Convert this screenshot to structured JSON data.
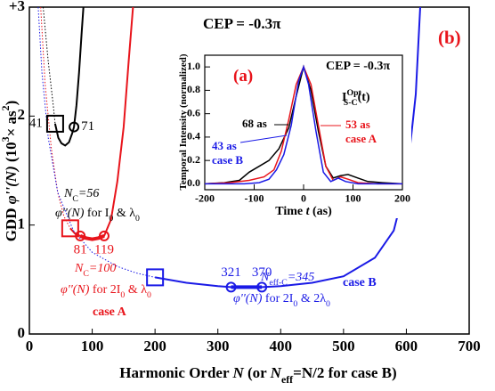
{
  "chart_data": [
    {
      "type": "line",
      "xlim": [
        0,
        700
      ],
      "xticks": [
        0,
        100,
        200,
        300,
        400,
        500,
        600,
        700
      ],
      "ylim": [
        0,
        3
      ],
      "yticks": [
        0,
        1,
        2,
        {
          "value": 3,
          "label": "+3"
        }
      ],
      "xlabel": [
        "Harmonic Order   ",
        "N",
        "   (or  ",
        "N",
        "eff",
        "=N/2  for case B)"
      ],
      "ylabel": [
        "GDD   ",
        "φ''(N)",
        "   (10",
        "3",
        "× as",
        "2",
        ")"
      ],
      "series": [
        {
          "color": "#000000",
          "dotted": true,
          "width": 1,
          "x": [
            22,
            26,
            30,
            34,
            38,
            41
          ],
          "values": [
            3,
            2.75,
            2.5,
            2.3,
            2.1,
            1.93
          ]
        },
        {
          "color": "#000000",
          "dotted": false,
          "width": 2,
          "x": [
            41,
            46,
            51,
            57,
            63,
            68,
            71,
            75,
            79,
            83,
            86
          ],
          "values": [
            1.93,
            1.8,
            1.75,
            1.73,
            1.76,
            1.84,
            1.9,
            2.1,
            2.4,
            2.75,
            3
          ]
        },
        {
          "color": "#e8141b",
          "dotted": true,
          "width": 1,
          "x": [
            18,
            25,
            35,
            45,
            55,
            65
          ],
          "values": [
            3,
            2.3,
            1.7,
            1.3,
            1.08,
            0.97
          ]
        },
        {
          "color": "#e8141b",
          "dotted": false,
          "width": 2,
          "x": [
            65,
            73,
            81,
            90,
            100,
            110,
            119,
            130,
            140,
            150,
            158,
            165
          ],
          "values": [
            0.97,
            0.92,
            0.9,
            0.88,
            0.87,
            0.88,
            0.9,
            1.05,
            1.4,
            1.9,
            2.5,
            3
          ]
        },
        {
          "color": "#e8141b",
          "dotted": false,
          "width": 4,
          "x": [
            81,
            90,
            100,
            110,
            119
          ],
          "values": [
            0.9,
            0.88,
            0.87,
            0.88,
            0.9
          ]
        },
        {
          "color": "#1a1ae6",
          "dotted": true,
          "width": 1,
          "x": [
            14,
            20,
            30,
            45,
            70,
            100,
            140,
            170,
            200
          ],
          "values": [
            3,
            2.4,
            1.8,
            1.3,
            0.95,
            0.75,
            0.62,
            0.56,
            0.52
          ]
        },
        {
          "color": "#1a1ae6",
          "dotted": false,
          "width": 2,
          "x": [
            200,
            250,
            300,
            321,
            345,
            370,
            400,
            450,
            500,
            550,
            580,
            600,
            615,
            622
          ],
          "values": [
            0.52,
            0.47,
            0.44,
            0.43,
            0.43,
            0.43,
            0.44,
            0.47,
            0.53,
            0.7,
            0.95,
            1.4,
            2.2,
            3
          ]
        },
        {
          "color": "#1a1ae6",
          "dotted": false,
          "width": 4,
          "x": [
            321,
            345,
            370
          ],
          "values": [
            0.43,
            0.43,
            0.43
          ]
        }
      ],
      "markers": [
        {
          "shape": "square",
          "color": "#000000",
          "x": 41,
          "y": 1.93,
          "label_side": "left"
        },
        {
          "shape": "circle",
          "color": "#000000",
          "x": 71,
          "y": 1.9,
          "label_side": "right"
        },
        {
          "shape": "square",
          "color": "#e8141b",
          "x": 65,
          "y": 0.97
        },
        {
          "shape": "circle",
          "color": "#e8141b",
          "x": 81,
          "y": 0.9,
          "label_side": "below"
        },
        {
          "shape": "circle",
          "color": "#e8141b",
          "x": 119,
          "y": 0.9,
          "label_side": "below"
        },
        {
          "shape": "square",
          "color": "#1a1ae6",
          "x": 200,
          "y": 0.52
        },
        {
          "shape": "circle",
          "color": "#1a1ae6",
          "x": 321,
          "y": 0.43,
          "label_side": "above"
        },
        {
          "shape": "circle",
          "color": "#1a1ae6",
          "x": 370,
          "y": 0.43,
          "label_side": "above"
        }
      ],
      "annotations": [
        [
          "CEP = -0.3π"
        ],
        [
          "(b)"
        ],
        [
          "N",
          "C",
          "=56"
        ],
        [
          "φ''(N)",
          " for I",
          "0",
          " & λ",
          "0"
        ],
        [
          "N",
          "C",
          "=100"
        ],
        [
          "φ''(N)",
          " for 2I",
          "0",
          " & λ",
          "0"
        ],
        [
          "case A"
        ],
        [
          "N",
          "eff-C",
          "=345"
        ],
        [
          "φ''(N)",
          " for 2I",
          "0",
          " & 2λ",
          "0"
        ],
        [
          "case B"
        ]
      ]
    },
    {
      "type": "line",
      "xlim": [
        -200,
        200
      ],
      "xticks": [
        -200,
        -100,
        0,
        100,
        200
      ],
      "ylim": [
        -0.05,
        1.1
      ],
      "yticks": [
        {
          "value": 0,
          "label": "0.0"
        },
        0.2,
        0.4,
        0.6,
        0.8,
        {
          "value": 1,
          "label": "1.0"
        }
      ],
      "xlabel": [
        "Time  ",
        "t",
        "   (as)"
      ],
      "ylabel": [
        "Temporal Intensity (normalized)"
      ],
      "series": [
        {
          "color": "#000000",
          "dotted": false,
          "width": 1.5,
          "x": [
            -200,
            -160,
            -130,
            -110,
            -90,
            -70,
            -50,
            -30,
            -15,
            0,
            15,
            30,
            45,
            60,
            75,
            90,
            110,
            130,
            160,
            200
          ],
          "values": [
            0,
            0.01,
            0.03,
            0.1,
            0.15,
            0.2,
            0.3,
            0.48,
            0.75,
            1,
            0.8,
            0.45,
            0.15,
            0.05,
            0.07,
            0.08,
            0.05,
            0.02,
            0.01,
            0
          ]
        },
        {
          "color": "#e8141b",
          "dotted": false,
          "width": 1.5,
          "x": [
            -200,
            -150,
            -110,
            -80,
            -60,
            -45,
            -30,
            -15,
            0,
            15,
            30,
            45,
            60,
            75,
            90,
            110,
            150,
            200
          ],
          "values": [
            0,
            0.01,
            0.03,
            0.06,
            0.12,
            0.28,
            0.55,
            0.85,
            1,
            0.85,
            0.5,
            0.15,
            0.03,
            0.06,
            0.04,
            0.01,
            0,
            0
          ]
        },
        {
          "color": "#1a1ae6",
          "dotted": false,
          "width": 1.5,
          "x": [
            -200,
            -120,
            -90,
            -70,
            -55,
            -40,
            -25,
            -10,
            0,
            10,
            25,
            40,
            55,
            70,
            85,
            110,
            200
          ],
          "values": [
            0,
            0,
            0.01,
            0.04,
            0.12,
            0.25,
            0.5,
            0.88,
            1,
            0.85,
            0.45,
            0.1,
            0.02,
            0.05,
            0.02,
            0,
            0
          ]
        }
      ],
      "markers": [],
      "annotations": [
        [
          "(a)"
        ],
        [
          "CEP = -0.3π"
        ],
        [
          "I",
          "Opt",
          "S-C",
          "(t)"
        ],
        [
          "68 as"
        ],
        [
          "53 as"
        ],
        [
          "case A"
        ],
        [
          "43 as"
        ],
        [
          "case B"
        ]
      ]
    }
  ]
}
